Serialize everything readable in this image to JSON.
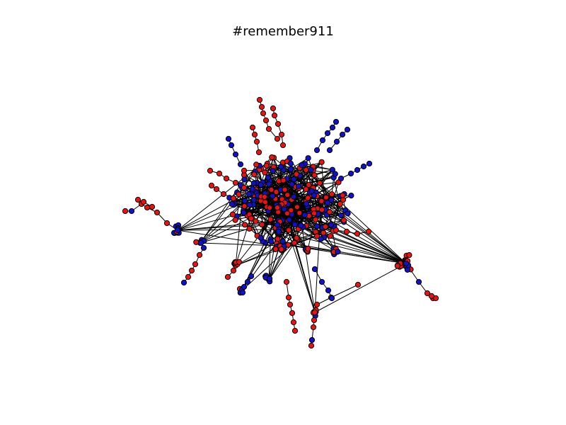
{
  "figure": {
    "title": "#remember911"
  },
  "legend_colors": {
    "node_red": "#ee1111",
    "node_blue": "#1111cc",
    "edge": "#000000",
    "node_outline": "#000000"
  }
}
